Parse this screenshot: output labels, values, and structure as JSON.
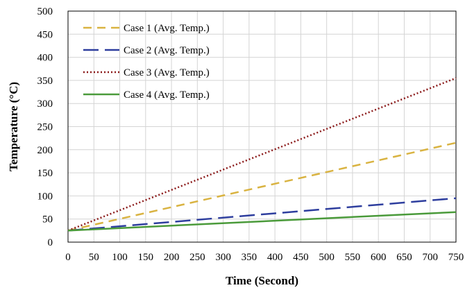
{
  "chart_data": {
    "type": "line",
    "title": "",
    "xlabel": "Time (Second)",
    "ylabel": "Temperature (°C)",
    "xlim": [
      0,
      750
    ],
    "ylim": [
      0,
      500
    ],
    "xticks": [
      0,
      50,
      100,
      150,
      200,
      250,
      300,
      350,
      400,
      450,
      500,
      550,
      600,
      650,
      700,
      750
    ],
    "yticks": [
      0,
      50,
      100,
      150,
      200,
      250,
      300,
      350,
      400,
      450,
      500
    ],
    "grid": true,
    "legend_position": "top-left",
    "series": [
      {
        "name": "Case 1 (Avg. Temp.)",
        "color": "#d9b341",
        "style": "dashed",
        "x": [
          0,
          750
        ],
        "y": [
          25,
          215
        ]
      },
      {
        "name": "Case 2 (Avg. Temp.)",
        "color": "#2e3e9e",
        "style": "long-dashed",
        "x": [
          0,
          750
        ],
        "y": [
          25,
          95
        ]
      },
      {
        "name": "Case 3 (Avg. Temp.)",
        "color": "#8b1a1a",
        "style": "dotted",
        "x": [
          0,
          750
        ],
        "y": [
          25,
          355
        ]
      },
      {
        "name": "Case 4 (Avg. Temp.)",
        "color": "#4a9a3a",
        "style": "solid",
        "x": [
          0,
          750
        ],
        "y": [
          25,
          65
        ]
      }
    ]
  }
}
